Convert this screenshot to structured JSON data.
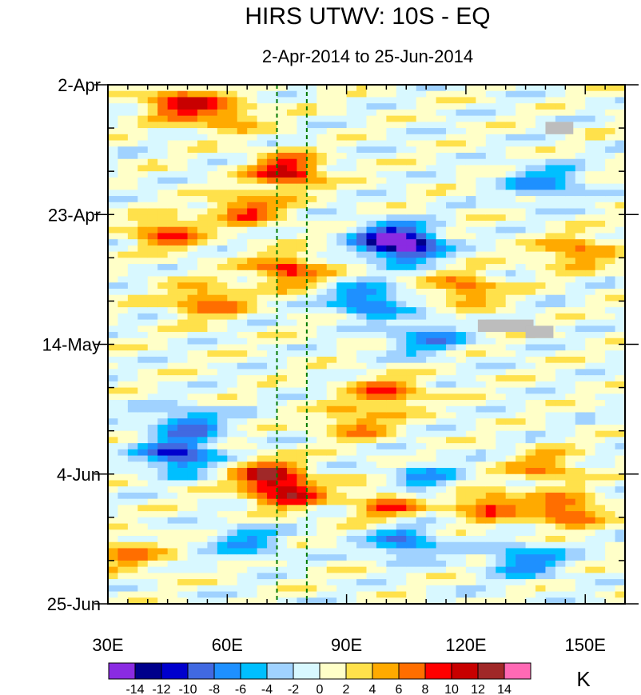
{
  "chart_data": {
    "type": "heatmap",
    "title": "HIRS UTWV: 10S - EQ",
    "subtitle": "2-Apr-2014 to 25-Jun-2014",
    "x_axis": {
      "range": [
        30,
        160
      ],
      "ticks": [
        30,
        60,
        90,
        120,
        150
      ],
      "tick_labels": [
        "30E",
        "60E",
        "90E",
        "120E",
        "150E"
      ]
    },
    "y_axis": {
      "range_days": [
        0,
        84
      ],
      "ticks_days": [
        0,
        21,
        42,
        63,
        84
      ],
      "tick_labels": [
        "2-Apr",
        "23-Apr",
        "14-May",
        "4-Jun",
        "25-Jun"
      ]
    },
    "reference_lines_lon": [
      72.5,
      80
    ],
    "colorbar": {
      "unit": "K",
      "levels": [
        -14,
        -12,
        -10,
        -8,
        -6,
        -4,
        -2,
        0,
        2,
        4,
        6,
        8,
        10,
        12,
        14
      ],
      "labels": [
        "-14",
        "-12",
        "-10",
        "-8",
        "-6",
        "-4",
        "-2",
        "0",
        "2",
        "4",
        "6",
        "8",
        "10",
        "12",
        "14"
      ],
      "colors": [
        "#8a2be2",
        "#00008b",
        "#0000cd",
        "#4169e1",
        "#1e90ff",
        "#00bfff",
        "#a0d2ff",
        "#d8f8ff",
        "#ffffc8",
        "#ffe14b",
        "#ffaa00",
        "#ff6e00",
        "#ff0000",
        "#c80000",
        "#a02828",
        "#ff69b4"
      ]
    },
    "features": [
      {
        "lon": 48,
        "day": 3,
        "value": 10
      },
      {
        "lon": 60,
        "day": 5,
        "value": 6
      },
      {
        "lon": 75,
        "day": 14,
        "value": 11
      },
      {
        "lon": 65,
        "day": 20,
        "value": 8
      },
      {
        "lon": 45,
        "day": 24,
        "value": 8
      },
      {
        "lon": 55,
        "day": 35,
        "value": 8
      },
      {
        "lon": 75,
        "day": 30,
        "value": 9
      },
      {
        "lon": 120,
        "day": 33,
        "value": 7
      },
      {
        "lon": 148,
        "day": 27,
        "value": 7
      },
      {
        "lon": 100,
        "day": 25,
        "value": -8
      },
      {
        "lon": 105,
        "day": 26,
        "value": -12
      },
      {
        "lon": 95,
        "day": 35,
        "value": -9
      },
      {
        "lon": 110,
        "day": 41,
        "value": -7
      },
      {
        "lon": 140,
        "day": 16,
        "value": -7
      },
      {
        "lon": 48,
        "day": 60,
        "value": -11
      },
      {
        "lon": 50,
        "day": 55,
        "value": -8
      },
      {
        "lon": 70,
        "day": 63,
        "value": 9
      },
      {
        "lon": 75,
        "day": 66,
        "value": 10
      },
      {
        "lon": 100,
        "day": 50,
        "value": 8
      },
      {
        "lon": 92,
        "day": 55,
        "value": 6
      },
      {
        "lon": 145,
        "day": 69,
        "value": 9
      },
      {
        "lon": 125,
        "day": 68,
        "value": 8
      },
      {
        "lon": 100,
        "day": 68,
        "value": 7
      },
      {
        "lon": 105,
        "day": 74,
        "value": -8
      },
      {
        "lon": 135,
        "day": 77,
        "value": -8
      },
      {
        "lon": 65,
        "day": 74,
        "value": -6
      },
      {
        "lon": 35,
        "day": 76,
        "value": 6
      },
      {
        "lon": 140,
        "day": 62,
        "value": 6
      },
      {
        "lon": 110,
        "day": 64,
        "value": -6
      }
    ],
    "missing_regions": [
      {
        "lon": [
          140,
          147
        ],
        "day": [
          6,
          8
        ]
      },
      {
        "lon": [
          123,
          137
        ],
        "day": [
          38,
          40
        ]
      },
      {
        "lon": [
          135,
          142
        ],
        "day": [
          39,
          41
        ]
      }
    ]
  }
}
